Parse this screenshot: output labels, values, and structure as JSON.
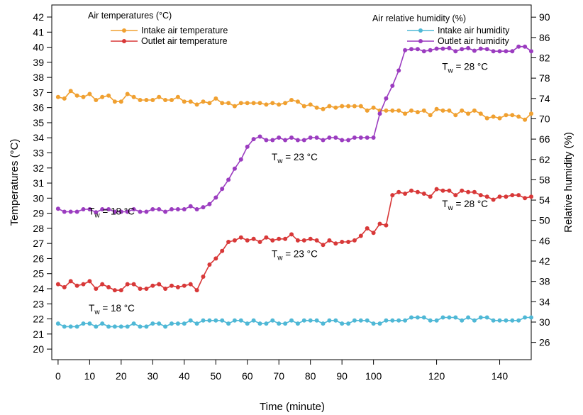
{
  "chart_data": {
    "type": "line",
    "title": "",
    "xlabel": "Time (minute)",
    "ylabel_left": "Temperatures (°C)",
    "ylabel_right": "Relative humidity (%)",
    "xlim": [
      -2,
      150
    ],
    "ylim_left": [
      19.3,
      42.8
    ],
    "ylim_right": [
      22.6,
      92.4
    ],
    "xticks": [
      0,
      10,
      20,
      30,
      40,
      50,
      60,
      70,
      80,
      90,
      100,
      120,
      140
    ],
    "yticks_left": [
      20,
      21,
      22,
      23,
      24,
      25,
      26,
      27,
      28,
      29,
      30,
      31,
      32,
      33,
      34,
      35,
      36,
      37,
      38,
      39,
      40,
      41,
      42
    ],
    "yticks_right": [
      26,
      30,
      34,
      38,
      42,
      46,
      50,
      54,
      58,
      62,
      66,
      70,
      74,
      78,
      82,
      86,
      90
    ],
    "grid": false,
    "legend_left": {
      "title": "Air temperatures (°C)",
      "position": "top-left",
      "entries": [
        "Intake air temperature",
        "Outlet air temperature"
      ]
    },
    "legend_right": {
      "title": "Air relative humidity (%)",
      "position": "top-right",
      "entries": [
        "Intake air humidity",
        "Outlet air humidity"
      ]
    },
    "x": [
      0,
      2,
      4,
      6,
      8,
      10,
      12,
      14,
      16,
      18,
      20,
      22,
      24,
      26,
      28,
      30,
      32,
      34,
      36,
      38,
      40,
      42,
      44,
      46,
      48,
      50,
      52,
      54,
      56,
      58,
      60,
      62,
      64,
      66,
      68,
      70,
      72,
      74,
      76,
      78,
      80,
      82,
      84,
      86,
      88,
      90,
      92,
      94,
      96,
      98,
      100,
      102,
      104,
      106,
      108,
      110,
      112,
      114,
      116,
      118,
      120,
      122,
      124,
      126,
      128,
      130,
      132,
      134,
      136,
      138,
      140,
      142,
      144,
      146,
      148,
      150
    ],
    "series": [
      {
        "name": "Intake air temperature",
        "axis": "left",
        "color": "#f0a030",
        "values": [
          36.7,
          36.6,
          37.1,
          36.8,
          36.7,
          36.9,
          36.5,
          36.7,
          36.8,
          36.4,
          36.4,
          36.9,
          36.7,
          36.5,
          36.5,
          36.5,
          36.7,
          36.5,
          36.5,
          36.7,
          36.4,
          36.4,
          36.2,
          36.4,
          36.3,
          36.6,
          36.3,
          36.3,
          36.1,
          36.3,
          36.3,
          36.3,
          36.3,
          36.2,
          36.3,
          36.2,
          36.3,
          36.5,
          36.4,
          36.1,
          36.2,
          36.0,
          35.9,
          36.1,
          36.0,
          36.1,
          36.1,
          36.1,
          36.1,
          35.8,
          36.0,
          35.8,
          35.8,
          35.8,
          35.8,
          35.6,
          35.8,
          35.7,
          35.8,
          35.5,
          35.9,
          35.8,
          35.8,
          35.5,
          35.8,
          35.6,
          35.8,
          35.6,
          35.3,
          35.4,
          35.3,
          35.5,
          35.5,
          35.4,
          35.2,
          35.6
        ]
      },
      {
        "name": "Outlet air temperature",
        "axis": "left",
        "color": "#d83838",
        "values": [
          24.3,
          24.1,
          24.5,
          24.2,
          24.3,
          24.5,
          24.0,
          24.3,
          24.1,
          23.9,
          23.9,
          24.3,
          24.3,
          24.0,
          24.0,
          24.2,
          24.3,
          24.0,
          24.2,
          24.1,
          24.2,
          24.3,
          23.9,
          24.8,
          25.6,
          26.0,
          26.5,
          27.1,
          27.2,
          27.4,
          27.2,
          27.3,
          27.1,
          27.4,
          27.2,
          27.3,
          27.3,
          27.6,
          27.2,
          27.2,
          27.3,
          27.2,
          26.9,
          27.2,
          27.0,
          27.1,
          27.1,
          27.2,
          27.5,
          28.0,
          27.7,
          28.3,
          28.2,
          30.2,
          30.4,
          30.3,
          30.5,
          30.4,
          30.3,
          30.1,
          30.6,
          30.5,
          30.5,
          30.2,
          30.5,
          30.4,
          30.4,
          30.2,
          30.1,
          29.9,
          30.1,
          30.1,
          30.2,
          30.2,
          30.0,
          30.1
        ]
      },
      {
        "name": "Intake air humidity",
        "axis": "right",
        "color": "#4fb8d6",
        "values": [
          29.7,
          29.1,
          29.1,
          29.1,
          29.7,
          29.7,
          29.1,
          29.7,
          29.1,
          29.1,
          29.1,
          29.1,
          29.7,
          29.1,
          29.1,
          29.7,
          29.7,
          29.1,
          29.7,
          29.7,
          29.7,
          30.3,
          29.7,
          30.3,
          30.3,
          30.3,
          30.3,
          29.7,
          30.3,
          30.3,
          29.7,
          30.3,
          29.7,
          29.7,
          30.3,
          29.7,
          29.7,
          30.3,
          29.7,
          30.3,
          30.3,
          30.3,
          29.7,
          30.3,
          30.3,
          29.7,
          29.7,
          30.3,
          30.3,
          30.3,
          29.7,
          29.7,
          30.3,
          30.3,
          30.3,
          30.3,
          30.9,
          30.9,
          30.9,
          30.3,
          30.3,
          30.9,
          30.9,
          30.9,
          30.3,
          30.9,
          30.3,
          30.9,
          30.9,
          30.3,
          30.3,
          30.3,
          30.3,
          30.3,
          30.9,
          30.9
        ]
      },
      {
        "name": "Outlet air humidity",
        "axis": "right",
        "color": "#9b3cc0",
        "values": [
          52.3,
          51.7,
          51.7,
          51.7,
          52.2,
          52.2,
          51.6,
          52.2,
          52.2,
          51.7,
          51.7,
          51.7,
          52.2,
          51.7,
          51.7,
          52.2,
          52.2,
          51.7,
          52.2,
          52.2,
          52.2,
          52.8,
          52.2,
          52.6,
          53.2,
          54.5,
          56.2,
          58.0,
          60.2,
          62.0,
          64.5,
          66.0,
          66.5,
          65.8,
          65.8,
          66.3,
          65.8,
          66.3,
          65.8,
          65.8,
          66.3,
          66.3,
          65.8,
          66.3,
          66.3,
          65.8,
          65.8,
          66.3,
          66.3,
          66.3,
          66.3,
          71.0,
          74.0,
          76.5,
          79.5,
          83.5,
          83.7,
          83.7,
          83.3,
          83.5,
          83.8,
          83.8,
          83.9,
          83.3,
          83.7,
          83.9,
          83.4,
          83.8,
          83.7,
          83.3,
          83.3,
          83.3,
          83.3,
          84.2,
          84.2,
          83.3
        ]
      }
    ],
    "annotations": [
      {
        "main": "T",
        "sub": "w",
        "rest": " = 18  °C",
        "x": 17,
        "y_left": 28.9,
        "axis": "left"
      },
      {
        "main": "T",
        "sub": "w",
        "rest": " = 23  °C",
        "x": 75,
        "y_left": 32.5,
        "axis": "left"
      },
      {
        "main": "T",
        "sub": "w",
        "rest": " = 28  °C",
        "x": 129,
        "y_left": 38.5,
        "axis": "left"
      },
      {
        "main": "T",
        "sub": "w",
        "rest": " = 18  °C",
        "x": 17,
        "y_left": 22.5,
        "axis": "left"
      },
      {
        "main": "T",
        "sub": "w",
        "rest": " = 23  °C",
        "x": 75,
        "y_left": 26.1,
        "axis": "left"
      },
      {
        "main": "T",
        "sub": "w",
        "rest": " = 28  °C",
        "x": 129,
        "y_left": 29.4,
        "axis": "left"
      }
    ]
  }
}
